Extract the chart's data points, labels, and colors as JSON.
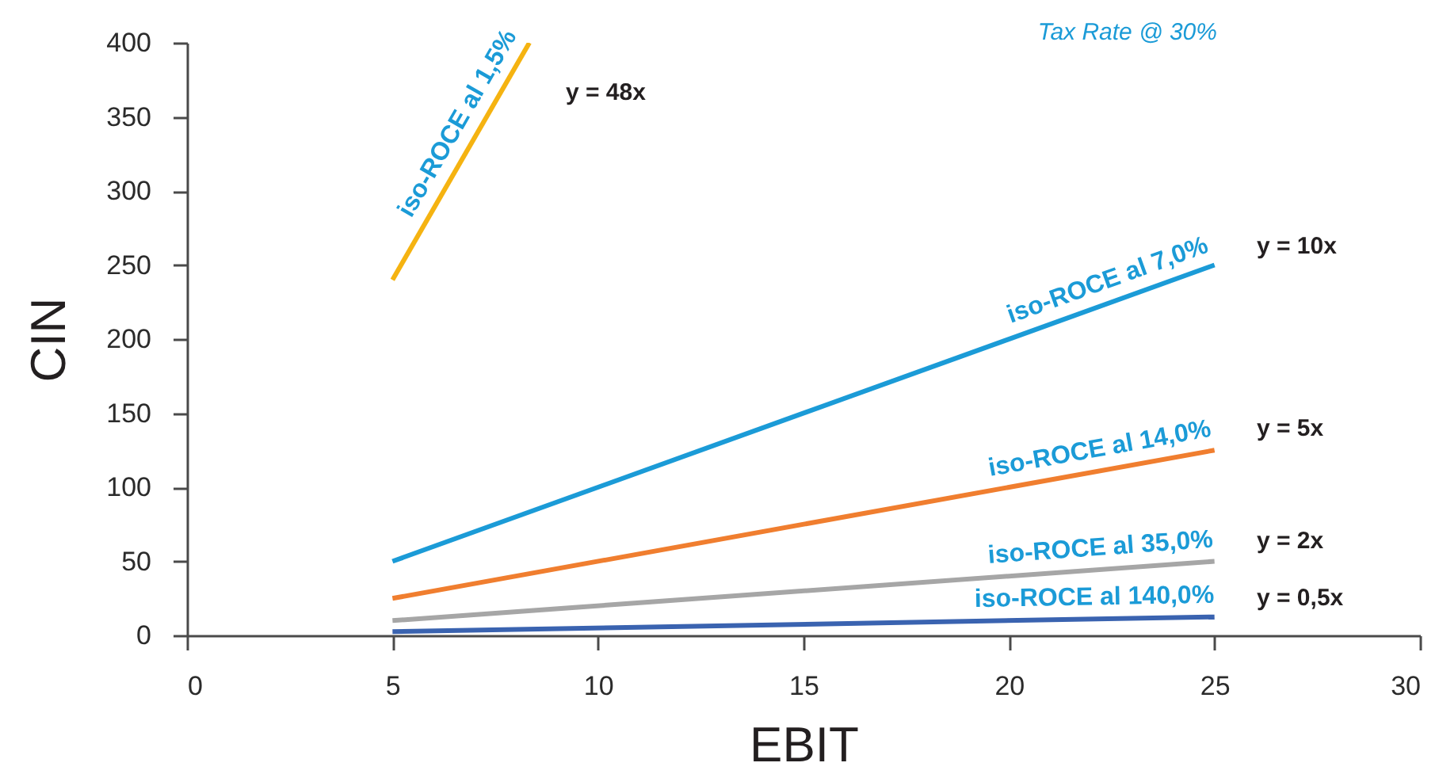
{
  "chart_data": {
    "type": "line",
    "xlabel": "EBIT",
    "ylabel": "CIN",
    "xlim": [
      0,
      30
    ],
    "ylim": [
      0,
      400
    ],
    "xticks": [
      0,
      5,
      10,
      15,
      20,
      25,
      30
    ],
    "yticks": [
      0,
      50,
      100,
      150,
      200,
      250,
      300,
      350,
      400
    ],
    "series": [
      {
        "name": "iso-ROCE al 1,5%",
        "color": "#f5b311",
        "x": [
          5,
          8.33
        ],
        "values": [
          240,
          400
        ]
      },
      {
        "name": "iso-ROCE al 7,0%",
        "color": "#1b9bd7",
        "x": [
          5,
          25
        ],
        "values": [
          50,
          250
        ]
      },
      {
        "name": "iso-ROCE al 14,0%",
        "color": "#f07e2f",
        "x": [
          5,
          25
        ],
        "values": [
          25,
          125
        ]
      },
      {
        "name": "iso-ROCE al 35,0%",
        "color": "#a6a6a6",
        "x": [
          5,
          25
        ],
        "values": [
          10,
          50
        ]
      },
      {
        "name": "iso-ROCE al 140,0%",
        "color": "#3a63b0",
        "x": [
          5,
          25
        ],
        "values": [
          2.5,
          12.5
        ]
      }
    ],
    "annotations": [
      "Tax Rate @ 30%",
      "y = 48x",
      "y = 10x",
      "y = 5x",
      "y = 2x",
      "y = 0,5x"
    ]
  }
}
